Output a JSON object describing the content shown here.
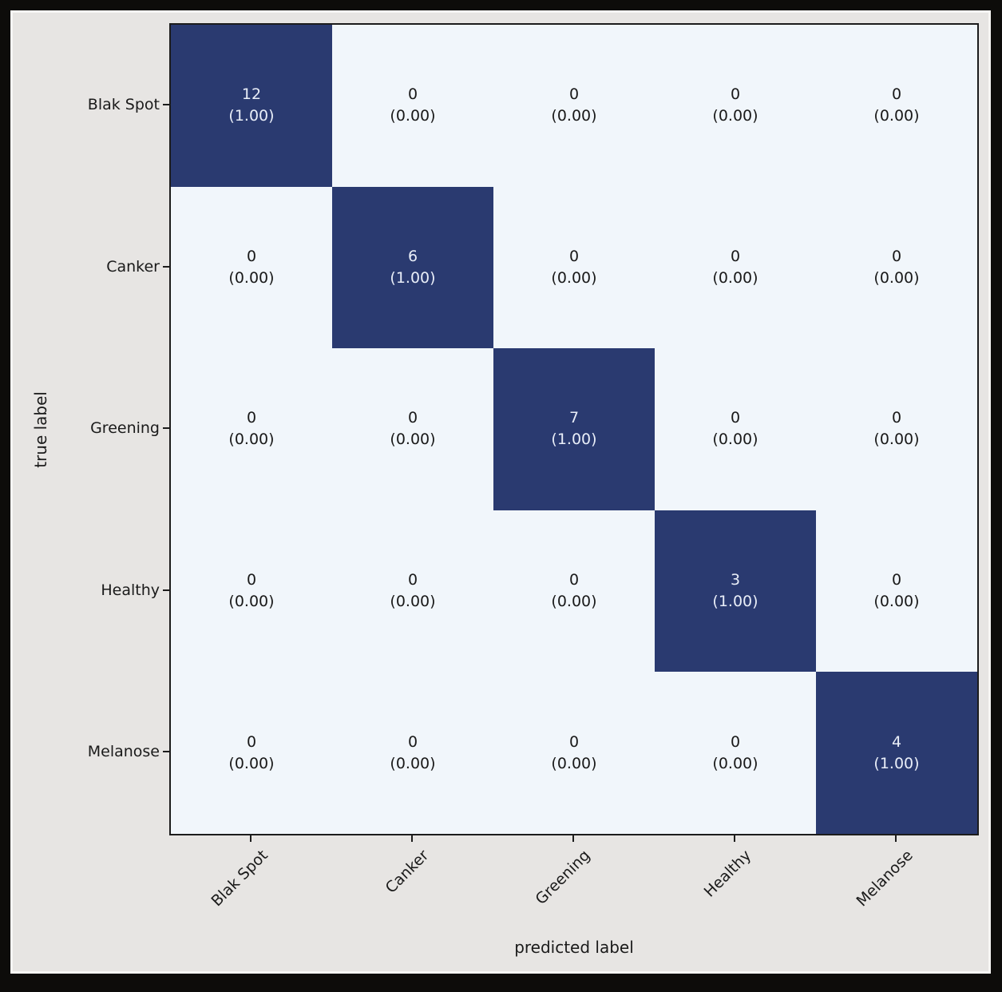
{
  "chart": {
    "ylabel": "true label",
    "xlabel": "predicted label",
    "row_labels": [
      "Blak Spot",
      "Canker",
      "Greening",
      "Healthy",
      "Melanose"
    ],
    "col_labels": [
      "Blak Spot",
      "Canker",
      "Greening",
      "Healthy",
      "Melanose"
    ],
    "cells": [
      {
        "count": "12",
        "frac": "(1.00)"
      },
      {
        "count": "0",
        "frac": "(0.00)"
      },
      {
        "count": "0",
        "frac": "(0.00)"
      },
      {
        "count": "0",
        "frac": "(0.00)"
      },
      {
        "count": "0",
        "frac": "(0.00)"
      },
      {
        "count": "0",
        "frac": "(0.00)"
      },
      {
        "count": "6",
        "frac": "(1.00)"
      },
      {
        "count": "0",
        "frac": "(0.00)"
      },
      {
        "count": "0",
        "frac": "(0.00)"
      },
      {
        "count": "0",
        "frac": "(0.00)"
      },
      {
        "count": "0",
        "frac": "(0.00)"
      },
      {
        "count": "0",
        "frac": "(0.00)"
      },
      {
        "count": "7",
        "frac": "(1.00)"
      },
      {
        "count": "0",
        "frac": "(0.00)"
      },
      {
        "count": "0",
        "frac": "(0.00)"
      },
      {
        "count": "0",
        "frac": "(0.00)"
      },
      {
        "count": "0",
        "frac": "(0.00)"
      },
      {
        "count": "0",
        "frac": "(0.00)"
      },
      {
        "count": "3",
        "frac": "(1.00)"
      },
      {
        "count": "0",
        "frac": "(0.00)"
      },
      {
        "count": "0",
        "frac": "(0.00)"
      },
      {
        "count": "0",
        "frac": "(0.00)"
      },
      {
        "count": "0",
        "frac": "(0.00)"
      },
      {
        "count": "0",
        "frac": "(0.00)"
      },
      {
        "count": "4",
        "frac": "(1.00)"
      }
    ]
  },
  "chart_data": {
    "type": "heatmap",
    "title": "",
    "xlabel": "predicted label",
    "ylabel": "true label",
    "categories_x": [
      "Blak Spot",
      "Canker",
      "Greening",
      "Healthy",
      "Melanose"
    ],
    "categories_y": [
      "Blak Spot",
      "Canker",
      "Greening",
      "Healthy",
      "Melanose"
    ],
    "matrix_counts": [
      [
        12,
        0,
        0,
        0,
        0
      ],
      [
        0,
        6,
        0,
        0,
        0
      ],
      [
        0,
        0,
        7,
        0,
        0
      ],
      [
        0,
        0,
        0,
        3,
        0
      ],
      [
        0,
        0,
        0,
        0,
        4
      ]
    ],
    "matrix_normalized": [
      [
        1.0,
        0.0,
        0.0,
        0.0,
        0.0
      ],
      [
        0.0,
        1.0,
        0.0,
        0.0,
        0.0
      ],
      [
        0.0,
        0.0,
        1.0,
        0.0,
        0.0
      ],
      [
        0.0,
        0.0,
        0.0,
        1.0,
        0.0
      ],
      [
        0.0,
        0.0,
        0.0,
        0.0,
        1.0
      ]
    ],
    "cell_label_format": "count newline (fraction 2dp)",
    "x_tick_rotation_deg": 45,
    "legend": "none",
    "grid": "off",
    "colors": {
      "diagonal_cell": "#2a3a70",
      "off_diagonal_cell": "#f1f6fb",
      "diagonal_text": "#e9eef8",
      "off_diagonal_text": "#191919",
      "figure_background": "#e7e5e3",
      "outer_frame": "#0d0c0a",
      "axis_spine": "#1c1c1c"
    }
  }
}
